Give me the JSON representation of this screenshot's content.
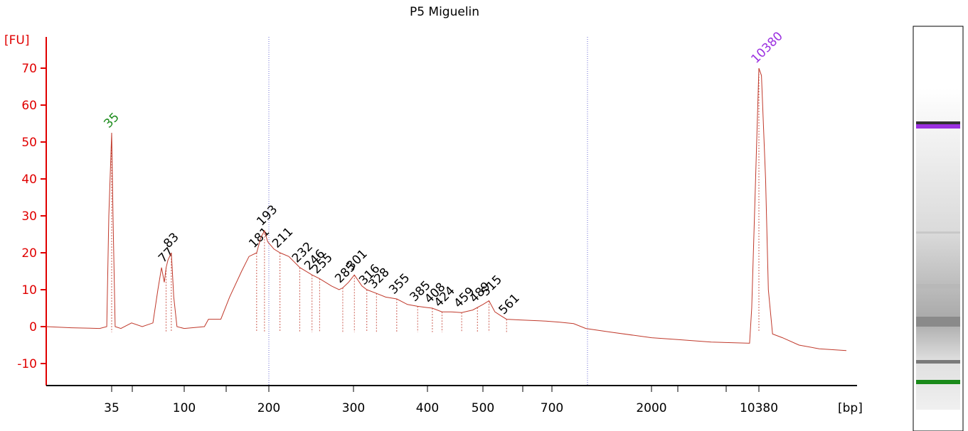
{
  "chart_data": {
    "type": "electropherogram",
    "title": "P5 Miguelin",
    "y_label": "[FU]",
    "x_label": "[bp]",
    "ylim": [
      -16,
      78
    ],
    "yticks": [
      -10,
      0,
      10,
      20,
      30,
      40,
      50,
      60,
      70
    ],
    "xticks": [
      35,
      100,
      200,
      300,
      400,
      500,
      700,
      2000,
      10380
    ],
    "xtick_colors": [
      "#000000",
      "#000000",
      "#000000",
      "#000000",
      "#000000",
      "#000000",
      "#000000",
      "#000000",
      "#000000"
    ],
    "trace_color": "#c0392b",
    "axis_color": "#e00000",
    "series": [
      {
        "x": [
          13.6,
          19.5,
          29.4,
          32.6,
          33.6,
          35,
          35.7,
          36.8,
          40,
          46.7,
          54.5,
          63.6,
          68.3,
          72,
          75,
          77,
          79,
          83,
          86,
          90,
          100,
          118,
          122,
          135,
          145,
          160,
          170,
          181,
          187,
          193,
          198,
          205,
          211,
          220,
          232,
          246,
          255,
          270,
          280,
          285,
          293,
          301,
          310,
          316,
          328,
          340,
          355,
          370,
          385,
          398,
          408,
          424,
          440,
          459,
          480,
          500,
          515,
          530,
          545,
          561,
          600,
          680,
          760,
          880,
          1000,
          1300,
          2000,
          3000,
          5000,
          9000,
          9300,
          9700,
          10380,
          10800,
          11500,
          12000,
          12800,
          14900,
          19200,
          26200,
          39700
        ],
        "values": [
          0,
          -0.3,
          -0.5,
          0,
          30,
          52.5,
          30,
          0,
          -0.5,
          1,
          0,
          1,
          10,
          16,
          12,
          16,
          18,
          20,
          8,
          0,
          -0.5,
          0,
          2,
          2,
          8,
          15,
          19,
          20,
          24,
          26,
          23,
          21,
          20,
          19,
          16,
          14,
          13,
          11,
          10,
          10.5,
          12,
          14,
          11,
          10,
          9,
          8,
          7.5,
          6,
          5.5,
          5.2,
          5,
          4,
          4,
          3.8,
          4.5,
          6,
          7,
          4,
          3,
          2,
          1.8,
          1.5,
          1.2,
          0.8,
          -0.5,
          -1.5,
          -3,
          -3.5,
          -4.2,
          -4.5,
          5,
          30,
          70,
          68,
          40,
          10,
          -2,
          -3,
          -5,
          -6,
          -6.5
        ]
      }
    ],
    "peaks": [
      35,
      77,
      83,
      181,
      193,
      211,
      232,
      246,
      255,
      285,
      301,
      316,
      328,
      355,
      385,
      408,
      424,
      459,
      489,
      515,
      561,
      10380
    ],
    "peak_colors": [
      "#1a8a1a",
      "#000000",
      "#000000",
      "#000000",
      "#000000",
      "#000000",
      "#000000",
      "#000000",
      "#000000",
      "#000000",
      "#000000",
      "#000000",
      "#000000",
      "#000000",
      "#000000",
      "#000000",
      "#000000",
      "#000000",
      "#000000",
      "#000000",
      "#000000",
      "#9b30e0"
    ]
  }
}
